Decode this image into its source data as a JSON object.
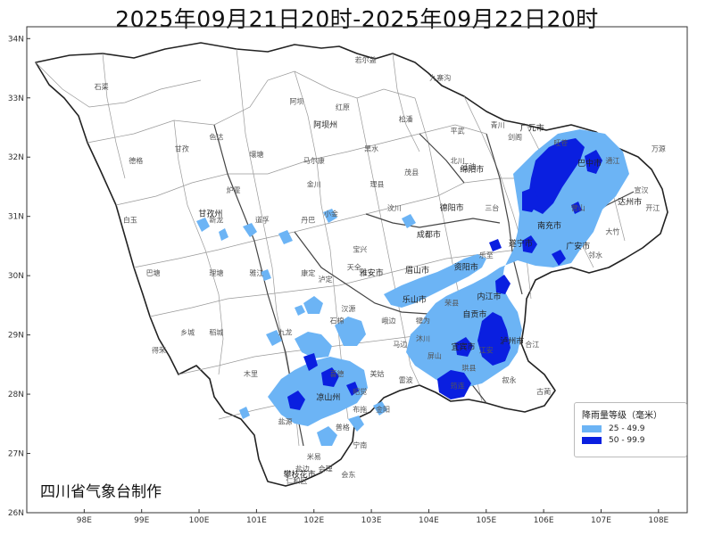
{
  "title": "2025年09月21日20时-2025年09月22日20时",
  "credit": "四川省气象台制作",
  "axes": {
    "lat_labels": [
      "34N",
      "33N",
      "32N",
      "31N",
      "30N",
      "29N",
      "28N",
      "27N",
      "26N"
    ],
    "lon_labels": [
      "98E",
      "99E",
      "100E",
      "101E",
      "102E",
      "103E",
      "104E",
      "105E",
      "106E",
      "107E",
      "108E"
    ]
  },
  "legend": {
    "title": "降雨量等级（毫米）",
    "items": [
      {
        "label": "25 - 49.9",
        "color": "#6cb4f5"
      },
      {
        "label": "50 - 99.9",
        "color": "#0a1fe0"
      }
    ]
  },
  "places": [
    {
      "name": "石渠",
      "lon": 98.3,
      "lat": 33.15
    },
    {
      "name": "若尔盖",
      "lon": 102.9,
      "lat": 33.6
    },
    {
      "name": "九寨沟",
      "lon": 104.2,
      "lat": 33.3
    },
    {
      "name": "阿坝",
      "lon": 101.7,
      "lat": 32.9
    },
    {
      "name": "红原",
      "lon": 102.5,
      "lat": 32.8
    },
    {
      "name": "松潘",
      "lon": 103.6,
      "lat": 32.6
    },
    {
      "name": "平武",
      "lon": 104.5,
      "lat": 32.4
    },
    {
      "name": "青川",
      "lon": 105.2,
      "lat": 32.5
    },
    {
      "name": "色达",
      "lon": 100.3,
      "lat": 32.3
    },
    {
      "name": "甘孜",
      "lon": 99.7,
      "lat": 32.1
    },
    {
      "name": "德格",
      "lon": 98.9,
      "lat": 31.9
    },
    {
      "name": "壤塘",
      "lon": 101.0,
      "lat": 32.0
    },
    {
      "name": "马尔康",
      "lon": 102.0,
      "lat": 31.9
    },
    {
      "name": "黑水",
      "lon": 103.0,
      "lat": 32.1
    },
    {
      "name": "江油",
      "lon": 104.7,
      "lat": 31.8
    },
    {
      "name": "炉霍",
      "lon": 100.6,
      "lat": 31.4
    },
    {
      "name": "金川",
      "lon": 102.0,
      "lat": 31.5
    },
    {
      "name": "理县",
      "lon": 103.1,
      "lat": 31.5
    },
    {
      "name": "茂县",
      "lon": 103.7,
      "lat": 31.7
    },
    {
      "name": "汶川",
      "lon": 103.4,
      "lat": 31.1
    },
    {
      "name": "白玉",
      "lon": 98.8,
      "lat": 30.9
    },
    {
      "name": "道孚",
      "lon": 101.1,
      "lat": 30.9
    },
    {
      "name": "丹巴",
      "lon": 101.9,
      "lat": 30.9
    },
    {
      "name": "小金",
      "lon": 102.3,
      "lat": 31.0
    },
    {
      "name": "新龙",
      "lon": 100.3,
      "lat": 30.9
    },
    {
      "name": "巴塘",
      "lon": 99.2,
      "lat": 30.0
    },
    {
      "name": "理塘",
      "lon": 100.3,
      "lat": 30.0
    },
    {
      "name": "雅江",
      "lon": 101.0,
      "lat": 30.0
    },
    {
      "name": "康定",
      "lon": 101.9,
      "lat": 30.0
    },
    {
      "name": "乡城",
      "lon": 99.8,
      "lat": 29.0
    },
    {
      "name": "稻城",
      "lon": 100.3,
      "lat": 29.0
    },
    {
      "name": "得荣",
      "lon": 99.3,
      "lat": 28.7
    },
    {
      "name": "九龙",
      "lon": 101.5,
      "lat": 29.0
    },
    {
      "name": "木里",
      "lon": 100.9,
      "lat": 28.3
    },
    {
      "name": "盐源",
      "lon": 101.5,
      "lat": 27.5
    },
    {
      "name": "石棉",
      "lon": 102.4,
      "lat": 29.2
    },
    {
      "name": "泸定",
      "lon": 102.2,
      "lat": 29.9
    },
    {
      "name": "天全",
      "lon": 102.7,
      "lat": 30.1
    },
    {
      "name": "宝兴",
      "lon": 102.8,
      "lat": 30.4
    },
    {
      "name": "汉源",
      "lon": 102.6,
      "lat": 29.4
    },
    {
      "name": "喜德",
      "lon": 102.4,
      "lat": 28.3
    },
    {
      "name": "昭觉",
      "lon": 102.8,
      "lat": 28.0
    },
    {
      "name": "美姑",
      "lon": 103.1,
      "lat": 28.3
    },
    {
      "name": "雷波",
      "lon": 103.6,
      "lat": 28.2
    },
    {
      "name": "金阳",
      "lon": 103.2,
      "lat": 27.7
    },
    {
      "name": "布拖",
      "lon": 102.8,
      "lat": 27.7
    },
    {
      "name": "普格",
      "lon": 102.5,
      "lat": 27.4
    },
    {
      "name": "宁南",
      "lon": 102.8,
      "lat": 27.1
    },
    {
      "name": "会东",
      "lon": 102.6,
      "lat": 26.6
    },
    {
      "name": "会理",
      "lon": 102.2,
      "lat": 26.7
    },
    {
      "name": "米易",
      "lon": 102.0,
      "lat": 26.9
    },
    {
      "name": "盐边",
      "lon": 101.8,
      "lat": 26.7
    },
    {
      "name": "仁和区",
      "lon": 101.7,
      "lat": 26.5
    },
    {
      "name": "屏山",
      "lon": 104.1,
      "lat": 28.6
    },
    {
      "name": "筠连",
      "lon": 104.5,
      "lat": 28.1
    },
    {
      "name": "珙县",
      "lon": 104.7,
      "lat": 28.4
    },
    {
      "name": "叙永",
      "lon": 105.4,
      "lat": 28.2
    },
    {
      "name": "古蔺",
      "lon": 106.0,
      "lat": 28.0
    },
    {
      "name": "江安",
      "lon": 105.0,
      "lat": 28.7
    },
    {
      "name": "合江",
      "lon": 105.8,
      "lat": 28.8
    },
    {
      "name": "旺苍",
      "lon": 106.3,
      "lat": 32.2
    },
    {
      "name": "通江",
      "lon": 107.2,
      "lat": 31.9
    },
    {
      "name": "万源",
      "lon": 108.0,
      "lat": 32.1
    },
    {
      "name": "宣汉",
      "lon": 107.7,
      "lat": 31.4
    },
    {
      "name": "开江",
      "lon": 107.9,
      "lat": 31.1
    },
    {
      "name": "大竹",
      "lon": 107.2,
      "lat": 30.7
    },
    {
      "name": "邻水",
      "lon": 106.9,
      "lat": 30.3
    },
    {
      "name": "营山",
      "lon": 106.6,
      "lat": 31.1
    },
    {
      "name": "剑阁",
      "lon": 105.5,
      "lat": 32.3
    },
    {
      "name": "北川",
      "lon": 104.5,
      "lat": 31.9
    },
    {
      "name": "三台",
      "lon": 105.1,
      "lat": 31.1
    },
    {
      "name": "乐至",
      "lon": 105.0,
      "lat": 30.3
    },
    {
      "name": "荣县",
      "lon": 104.4,
      "lat": 29.5
    },
    {
      "name": "犍为",
      "lon": 103.9,
      "lat": 29.2
    },
    {
      "name": "峨边",
      "lon": 103.3,
      "lat": 29.2
    },
    {
      "name": "马边",
      "lon": 103.5,
      "lat": 28.8
    },
    {
      "name": "沐川",
      "lon": 103.9,
      "lat": 28.9
    }
  ],
  "cities": [
    {
      "name": "阿坝州",
      "lon": 102.2,
      "lat": 32.5
    },
    {
      "name": "绵阳市",
      "lon": 104.75,
      "lat": 31.75
    },
    {
      "name": "广元市",
      "lon": 105.8,
      "lat": 32.45
    },
    {
      "name": "巴中市",
      "lon": 106.8,
      "lat": 31.85
    },
    {
      "name": "达州市",
      "lon": 107.5,
      "lat": 31.2
    },
    {
      "name": "甘孜州",
      "lon": 100.2,
      "lat": 31.0
    },
    {
      "name": "德阳市",
      "lon": 104.4,
      "lat": 31.1
    },
    {
      "name": "南充市",
      "lon": 106.1,
      "lat": 30.8
    },
    {
      "name": "成都市",
      "lon": 104.0,
      "lat": 30.65
    },
    {
      "name": "遂宁市",
      "lon": 105.6,
      "lat": 30.5
    },
    {
      "name": "广安市",
      "lon": 106.6,
      "lat": 30.45
    },
    {
      "name": "雅安市",
      "lon": 103.0,
      "lat": 30.0
    },
    {
      "name": "眉山市",
      "lon": 103.8,
      "lat": 30.05
    },
    {
      "name": "资阳市",
      "lon": 104.65,
      "lat": 30.1
    },
    {
      "name": "内江市",
      "lon": 105.05,
      "lat": 29.6
    },
    {
      "name": "乐山市",
      "lon": 103.75,
      "lat": 29.55
    },
    {
      "name": "自贡市",
      "lon": 104.8,
      "lat": 29.3
    },
    {
      "name": "宜宾市",
      "lon": 104.6,
      "lat": 28.75
    },
    {
      "name": "泸州市",
      "lon": 105.45,
      "lat": 28.85
    },
    {
      "name": "凉山州",
      "lon": 102.25,
      "lat": 27.9
    },
    {
      "name": "攀枝花市",
      "lon": 101.75,
      "lat": 26.6
    }
  ]
}
